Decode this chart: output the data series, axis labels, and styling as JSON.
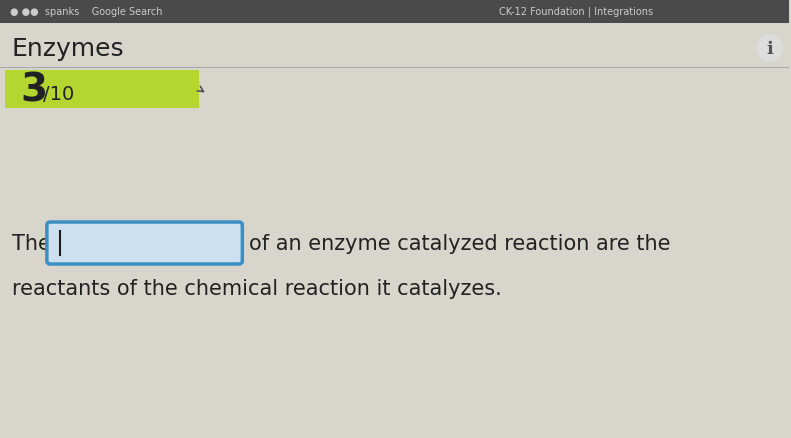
{
  "bg_color": "#d8d5cd",
  "header_bar_color": "#3a3a3a",
  "header_text": "tegrations",
  "header_left_text": " spanks",
  "title_text": "Enzymes",
  "title_fontsize": 18,
  "score_box_color": "#b5d630",
  "score_text_large": "3",
  "score_text_small": "/10",
  "score_fontsize_large": 28,
  "score_fontsize_small": 14,
  "body_line1": "The",
  "body_line2": "of an enzyme catalyzed reaction are the",
  "body_line3": "reactants of the chemical reaction it catalyzes.",
  "body_fontsize": 15,
  "input_box_color": "#cce0f0",
  "input_box_border_color": "#3a8fc4",
  "input_cursor_color": "#1a1a1a",
  "divider_color": "#aaaaaa",
  "text_color": "#222222"
}
